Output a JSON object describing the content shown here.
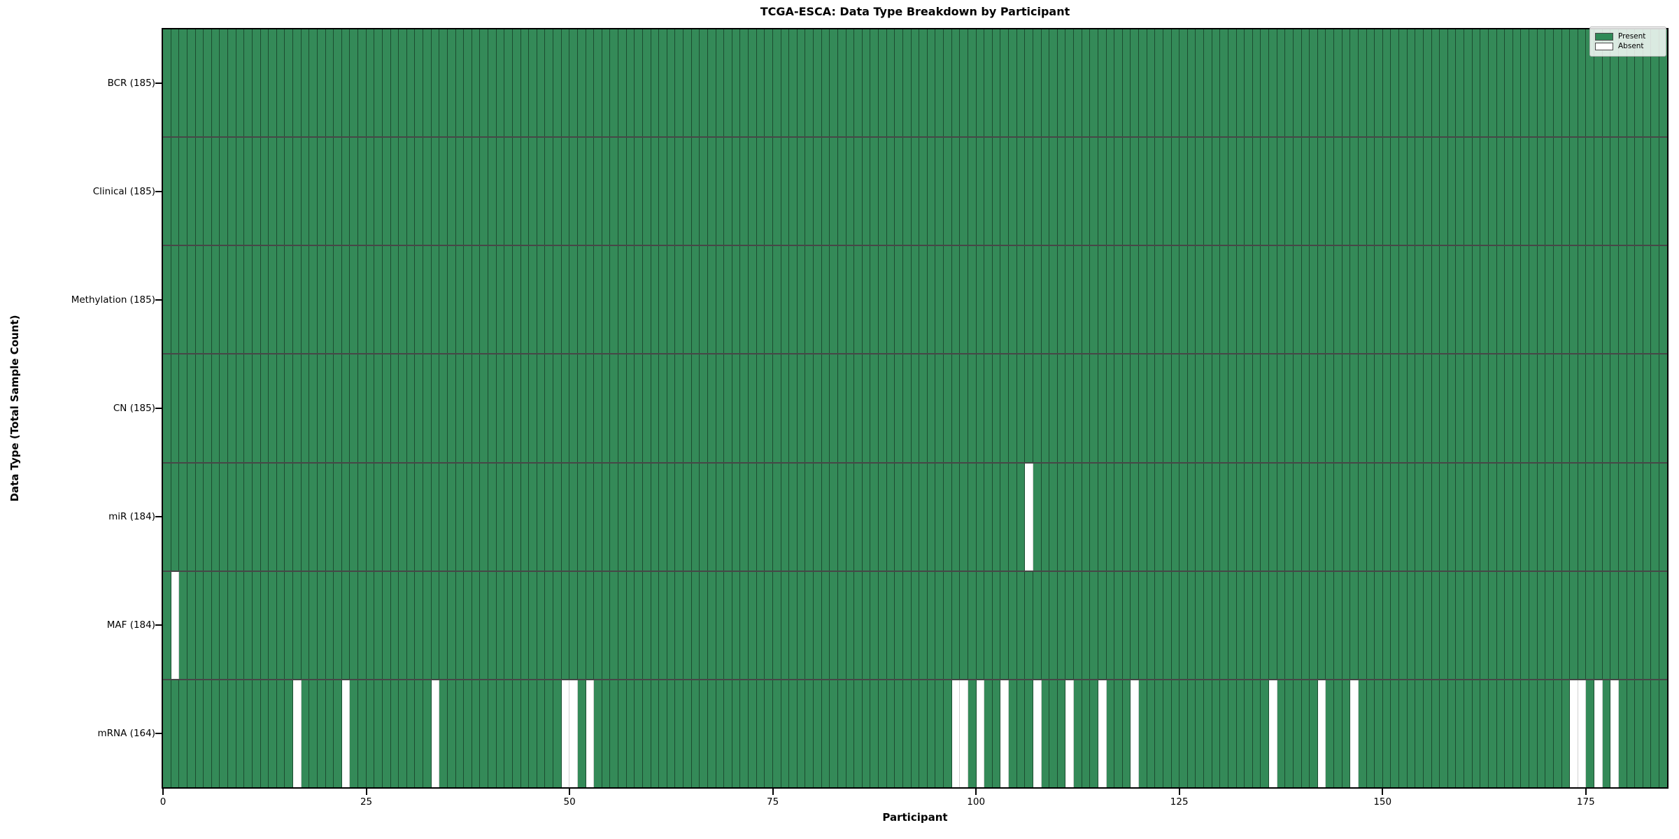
{
  "chart_data": {
    "type": "heatmap",
    "title": "TCGA-ESCA: Data Type Breakdown by Participant",
    "xlabel": "Participant",
    "ylabel": "Data Type (Total Sample Count)",
    "n_participants": 185,
    "x_ticks": [
      0,
      25,
      50,
      75,
      100,
      125,
      150,
      175
    ],
    "x_range": [
      0,
      185
    ],
    "grid": "cell-edges",
    "legend_position": "upper-right",
    "legend": [
      {
        "label": "Present",
        "color": "#2e8b57"
      },
      {
        "label": "Absent",
        "color": "#ffffff"
      }
    ],
    "colors": {
      "present": "#348a58",
      "absent": "#ffffff",
      "cell_edge": "#1c1c1c",
      "row_separator": "#000000",
      "plot_border": "#000000"
    },
    "rows": [
      {
        "label": "BCR (185)",
        "data_type": "BCR",
        "total_samples": 185,
        "absent_participants": []
      },
      {
        "label": "Clinical (185)",
        "data_type": "Clinical",
        "total_samples": 185,
        "absent_participants": []
      },
      {
        "label": "Methylation (185)",
        "data_type": "Methylation",
        "total_samples": 185,
        "absent_participants": []
      },
      {
        "label": "CN (185)",
        "data_type": "CN",
        "total_samples": 185,
        "absent_participants": []
      },
      {
        "label": "miR (184)",
        "data_type": "miR",
        "total_samples": 184,
        "absent_participants": [
          106
        ]
      },
      {
        "label": "MAF (184)",
        "data_type": "MAF",
        "total_samples": 184,
        "absent_participants": [
          1
        ]
      },
      {
        "label": "mRNA (164)",
        "data_type": "mRNA",
        "total_samples": 164,
        "absent_participants": [
          16,
          22,
          33,
          49,
          50,
          52,
          97,
          98,
          100,
          103,
          107,
          111,
          115,
          119,
          136,
          142,
          146,
          173,
          174,
          176,
          178
        ]
      }
    ]
  }
}
